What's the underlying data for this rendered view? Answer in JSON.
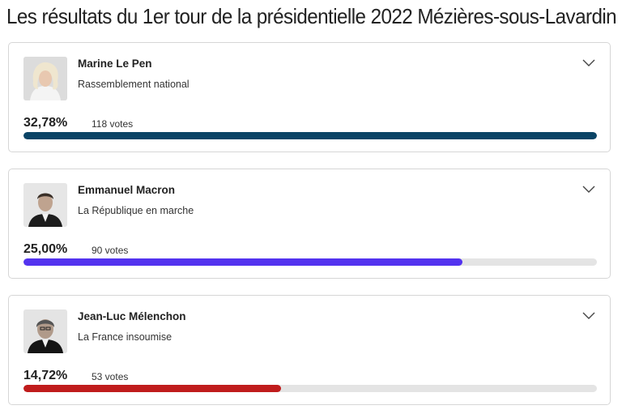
{
  "page": {
    "title": "Les résultats du 1er tour de la présidentielle 2022 Mézières-sous-Lavardin"
  },
  "candidates": [
    {
      "name": "Marine Le Pen",
      "party": "Rassemblement national",
      "percent_label": "32,78%",
      "votes_label": "118 votes",
      "bar_fraction": 1.0,
      "bar_color": "#0b4466",
      "photo_icon": "portrait-photo"
    },
    {
      "name": "Emmanuel Macron",
      "party": "La République en marche",
      "percent_label": "25,00%",
      "votes_label": "90 votes",
      "bar_fraction": 0.765,
      "bar_color": "#5333ef",
      "photo_icon": "portrait-photo"
    },
    {
      "name": "Jean-Luc Mélenchon",
      "party": "La France insoumise",
      "percent_label": "14,72%",
      "votes_label": "53 votes",
      "bar_fraction": 0.449,
      "bar_color": "#c01c1c",
      "photo_icon": "portrait-photo"
    }
  ],
  "icons": {
    "expand": "chevron-down-icon"
  }
}
